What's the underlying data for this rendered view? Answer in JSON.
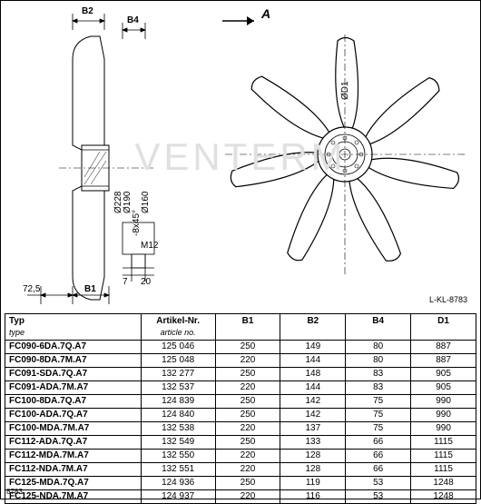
{
  "diagram": {
    "labels": {
      "B1": "B1",
      "B2": "B2",
      "B4": "B4",
      "A": "A",
      "dim_72_5": "72,5",
      "d228": "Ø228",
      "d190": "Ø190",
      "d160": "Ø160",
      "m12": "M12",
      "8x45": "-8x45°",
      "d1": "ØD1",
      "dim_7": "7",
      "dim_20": "20",
      "drawing_no": "L-KL-8783"
    },
    "watermark": "VENTERM"
  },
  "table": {
    "headers": {
      "typ": "Typ",
      "typ_sub": "type",
      "artikel": "Artikel-Nr.",
      "artikel_sub": "article no.",
      "b1": "B1",
      "b2": "B2",
      "b4": "B4",
      "d1": "D1"
    },
    "rows": [
      {
        "typ": "FC090-6DA.7Q.A7",
        "art": "125 046",
        "b1": "250",
        "b2": "149",
        "b4": "80",
        "d1": "887"
      },
      {
        "typ": "FC090-8DA.7M.A7",
        "art": "125 048",
        "b1": "220",
        "b2": "144",
        "b4": "80",
        "d1": "887"
      },
      {
        "typ": "FC091-SDA.7Q.A7",
        "art": "132 277",
        "b1": "250",
        "b2": "148",
        "b4": "83",
        "d1": "905"
      },
      {
        "typ": "FC091-ADA.7M.A7",
        "art": "132 537",
        "b1": "220",
        "b2": "144",
        "b4": "83",
        "d1": "905"
      },
      {
        "typ": "FC100-8DA.7Q.A7",
        "art": "124 839",
        "b1": "250",
        "b2": "142",
        "b4": "75",
        "d1": "990"
      },
      {
        "typ": "FC100-ADA.7Q.A7",
        "art": "124 840",
        "b1": "250",
        "b2": "142",
        "b4": "75",
        "d1": "990"
      },
      {
        "typ": "FC100-MDA.7M.A7",
        "art": "132 538",
        "b1": "220",
        "b2": "137",
        "b4": "75",
        "d1": "990"
      },
      {
        "typ": "FC112-ADA.7Q.A7",
        "art": "132 549",
        "b1": "250",
        "b2": "133",
        "b4": "66",
        "d1": "1115"
      },
      {
        "typ": "FC112-MDA.7M.A7",
        "art": "132 550",
        "b1": "220",
        "b2": "128",
        "b4": "66",
        "d1": "1115"
      },
      {
        "typ": "FC112-NDA.7M.A7",
        "art": "132 551",
        "b1": "220",
        "b2": "128",
        "b4": "66",
        "d1": "1115"
      },
      {
        "typ": "FC125-MDA.7Q.A7",
        "art": "124 936",
        "b1": "250",
        "b2": "119",
        "b4": "53",
        "d1": "1248"
      },
      {
        "typ": "FC125-NDA.7M.A7",
        "art": "124 937",
        "b1": "220",
        "b2": "116",
        "b4": "53",
        "d1": "1248"
      }
    ]
  },
  "footer": "8783"
}
